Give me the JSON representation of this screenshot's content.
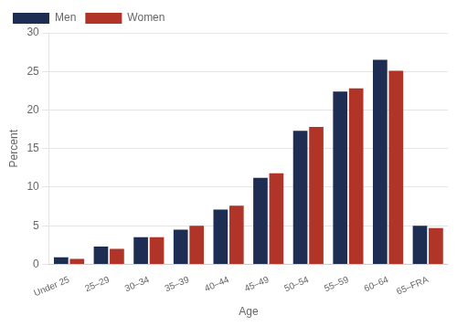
{
  "chart_data": {
    "type": "bar",
    "xlabel": "Age",
    "ylabel": "Percent",
    "categories": [
      "Under 25",
      "25–29",
      "30–34",
      "35–39",
      "40–44",
      "45–49",
      "50–54",
      "55–59",
      "60–64",
      "65–FRA"
    ],
    "series": [
      {
        "name": "Men",
        "color": "#1e2d52",
        "values": [
          0.9,
          2.3,
          3.5,
          4.5,
          7.1,
          11.2,
          17.3,
          22.4,
          26.5,
          5.0
        ]
      },
      {
        "name": "Women",
        "color": "#b03428",
        "values": [
          0.7,
          2.0,
          3.5,
          5.0,
          7.6,
          11.8,
          17.8,
          22.8,
          25.1,
          4.7
        ]
      }
    ],
    "ylim": [
      0,
      30
    ],
    "yticks": [
      0,
      5,
      10,
      15,
      20,
      25,
      30
    ],
    "grid": true,
    "legend": "upper left"
  }
}
